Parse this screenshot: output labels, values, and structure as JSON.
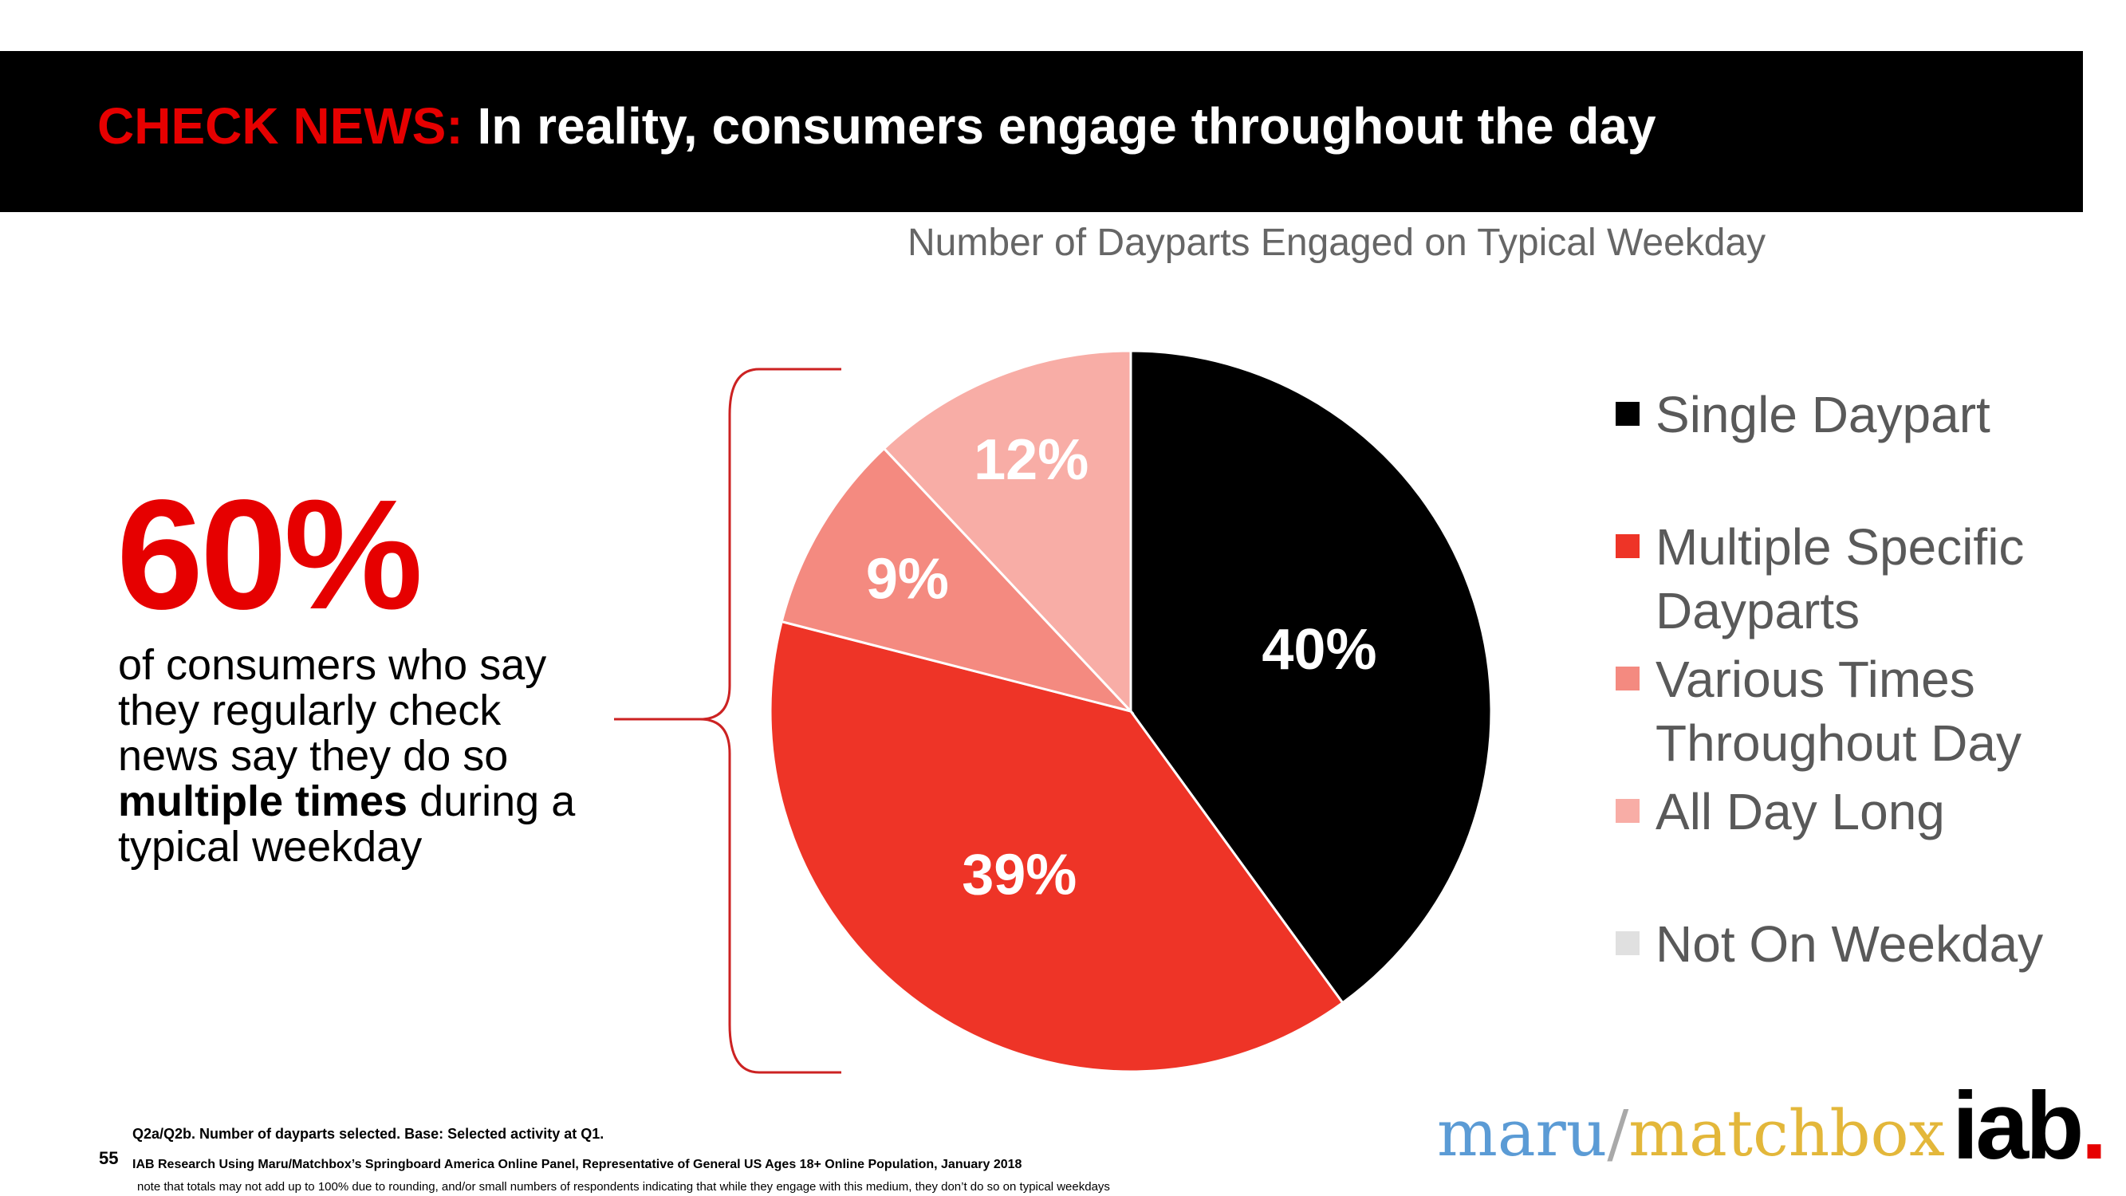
{
  "header": {
    "lead": "CHECK NEWS:",
    "title": "In reality, consumers engage throughout the day"
  },
  "stat": {
    "value": "60%",
    "text_before": "of consumers who say they regularly check news say they do so ",
    "text_bold": "multiple times",
    "text_after": " during a typical weekday"
  },
  "chart_data": {
    "type": "pie",
    "title": "Number of Dayparts Engaged on Typical Weekday",
    "slices": [
      {
        "name": "Single Daypart",
        "value": 40,
        "label": "40%",
        "color": "#000000"
      },
      {
        "name": "Multiple Specific Dayparts",
        "value": 39,
        "label": "39%",
        "color": "#ee3427"
      },
      {
        "name": "Various Times Throughout Day",
        "value": 9,
        "label": "9%",
        "color": "#f48a80"
      },
      {
        "name": "All Day Long",
        "value": 12,
        "label": "12%",
        "color": "#f8ada6"
      },
      {
        "name": "Not On Weekday",
        "value": 0,
        "label": "",
        "color": "#e0e0e0"
      }
    ],
    "legend_position": "right"
  },
  "legend": {
    "items": [
      {
        "label": "Single Daypart",
        "color": "#000000"
      },
      {
        "label": "Multiple Specific Dayparts",
        "color": "#ee3427"
      },
      {
        "label": "Various Times Throughout Day",
        "color": "#f48a80"
      },
      {
        "label": "All Day Long",
        "color": "#f8ada6"
      },
      {
        "label": "Not On Weekday",
        "color": "#e0e0e0"
      }
    ]
  },
  "footer": {
    "page_number": "55",
    "note1": "Q2a/Q2b. Number of dayparts selected. Base: Selected activity at Q1.",
    "note2": "IAB Research Using Maru/Matchbox’s Springboard America Online Panel, Representative of General US Ages 18+ Online Population, January 2018",
    "note3": "note that totals may not add up to 100% due to rounding, and/or small numbers of respondents indicating that while they engage with this medium, they don’t do so on typical weekdays"
  },
  "logos": {
    "maru": "maru",
    "slash": "/",
    "matchbox": "matchbox",
    "iab": "iab",
    "iab_dot": "."
  }
}
